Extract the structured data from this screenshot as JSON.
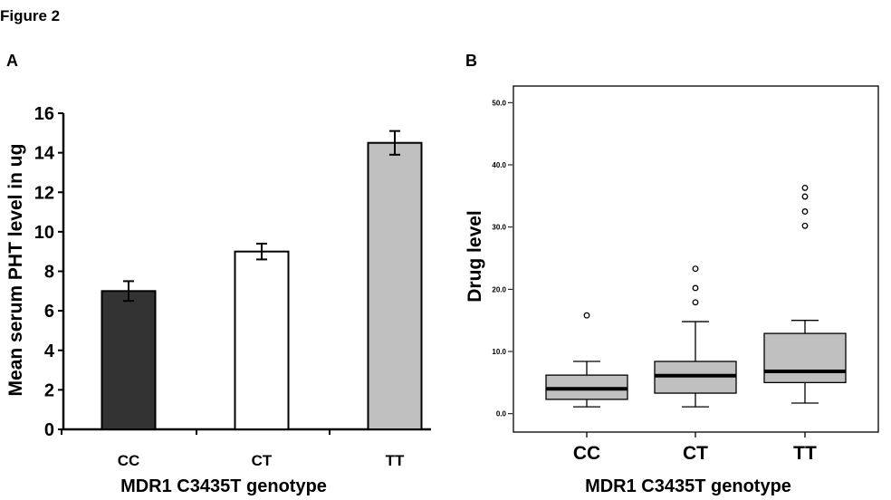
{
  "figure_title": "Figure 2",
  "chart_data": [
    {
      "panel": "A",
      "type": "bar",
      "categories": [
        "CC",
        "CT",
        "TT"
      ],
      "values": [
        7.0,
        9.0,
        14.5
      ],
      "errors": [
        0.5,
        0.4,
        0.6
      ],
      "bar_colors": [
        "#333333",
        "#ffffff",
        "#c0c0c0"
      ],
      "xlabel": "MDR1 C3435T genotype",
      "ylabel": "Mean serum PHT level in ug",
      "ylim": [
        0,
        16
      ],
      "yticks": [
        "0",
        "2",
        "4",
        "6",
        "8",
        "10",
        "12",
        "14",
        "16"
      ],
      "grid": false
    },
    {
      "panel": "B",
      "type": "box",
      "categories": [
        "CC",
        "CT",
        "TT"
      ],
      "boxes": [
        {
          "whisker_low": 1.1,
          "q1": 2.3,
          "median": 4.0,
          "q3": 6.2,
          "whisker_high": 8.4,
          "outliers": [
            15.8
          ]
        },
        {
          "whisker_low": 1.1,
          "q1": 3.3,
          "median": 6.1,
          "q3": 8.4,
          "whisker_high": 14.8,
          "outliers": [
            17.9,
            20.2,
            23.3
          ]
        },
        {
          "whisker_low": 1.7,
          "q1": 5.0,
          "median": 6.8,
          "q3": 12.9,
          "whisker_high": 15.0,
          "outliers": [
            30.2,
            32.5,
            34.9,
            36.3
          ]
        }
      ],
      "box_color": "#c0c0c0",
      "xlabel": "MDR1 C3435T genotype",
      "ylabel": "Drug level",
      "ylim": [
        0,
        50
      ],
      "yticks": [
        "0.0",
        "10.0",
        "20.0",
        "30.0",
        "40.0",
        "50.0"
      ],
      "grid": false
    }
  ]
}
